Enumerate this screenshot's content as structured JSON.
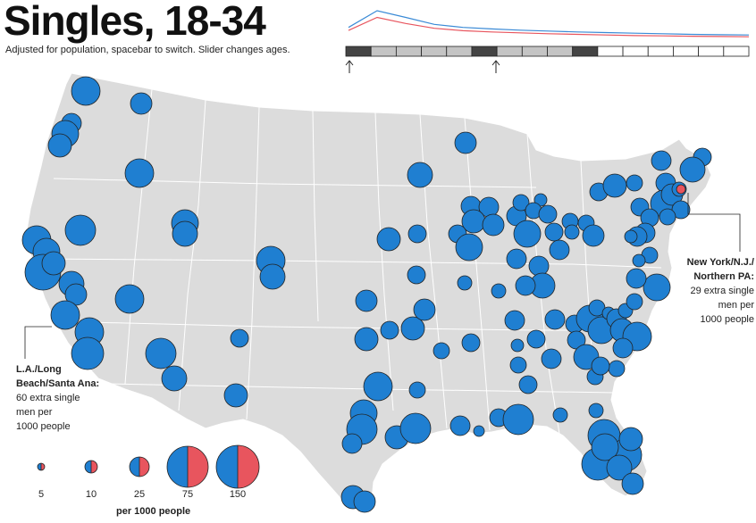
{
  "header": {
    "title": "Singles, 18-34",
    "subtitle": "Adjusted for population, spacebar to switch. Slider changes ages."
  },
  "timeline": {
    "segment_count": 16,
    "dark_segments": [
      0,
      5,
      9
    ],
    "selected_range": [
      0,
      9
    ],
    "series": [
      {
        "color": "#3a8ad6",
        "values": [
          0.45,
          1.0,
          0.78,
          0.55,
          0.45,
          0.4,
          0.36,
          0.33,
          0.3,
          0.28,
          0.26,
          0.24,
          0.22,
          0.21,
          0.2
        ]
      },
      {
        "color": "#e8555e",
        "values": [
          0.35,
          0.78,
          0.58,
          0.42,
          0.34,
          0.3,
          0.27,
          0.24,
          0.22,
          0.2,
          0.18,
          0.17,
          0.16,
          0.15,
          0.14
        ]
      }
    ]
  },
  "colors": {
    "map_fill": "#dcdcdc",
    "men": "#1f7fd1",
    "women": "#e8555e"
  },
  "callouts": {
    "ny": {
      "name": "New York/N.J./ Northern PA:",
      "line1": "29 extra single",
      "line2": "men per",
      "line3": "1000 people"
    },
    "la": {
      "name": "L.A./Long Beach/Santa Ana:",
      "line1": "60 extra single",
      "line2": "men per",
      "line3": "1000 people"
    }
  },
  "legend": {
    "values": [
      "5",
      "10",
      "25",
      "75",
      "150"
    ],
    "unit": "per 1000 people"
  }
}
